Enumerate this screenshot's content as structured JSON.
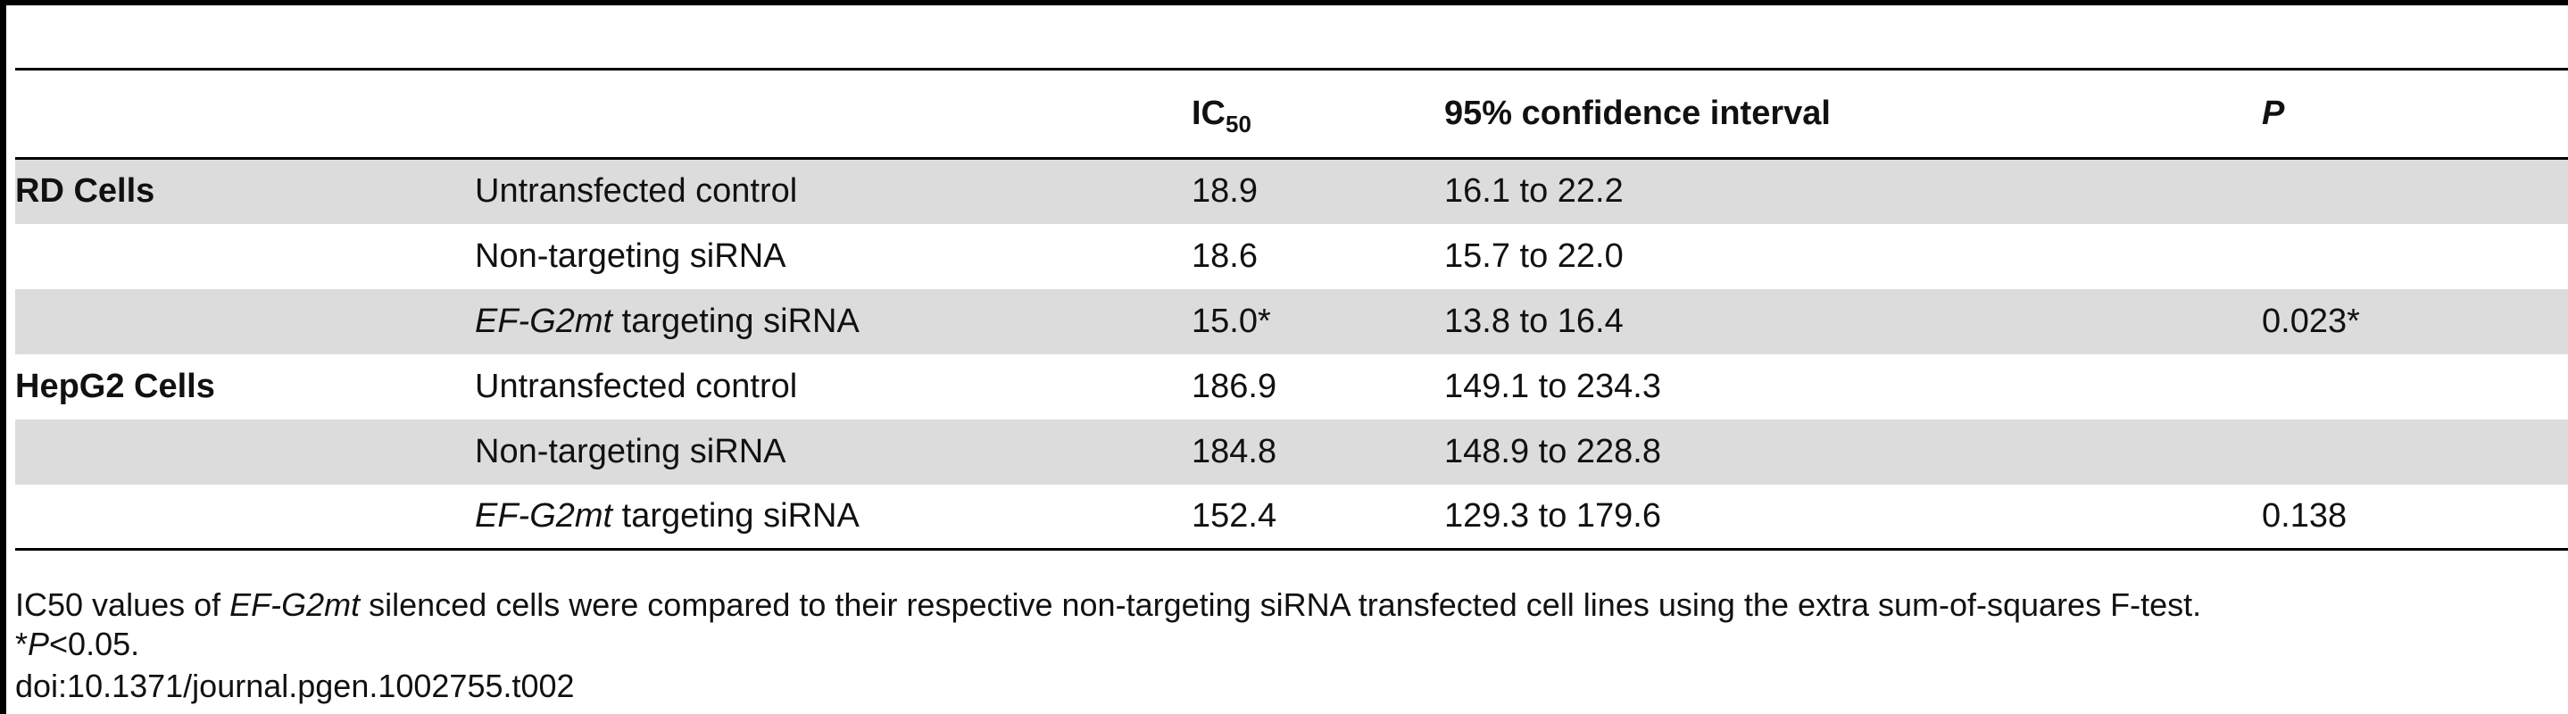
{
  "table": {
    "headers": {
      "col1": "",
      "col2": "",
      "ic50_main": "IC",
      "ic50_sub": "50",
      "ci": "95% confidence interval",
      "p": "P"
    },
    "rows": [
      {
        "group": "RD Cells",
        "condition_italic": "",
        "condition": "Untransfected control",
        "ic50": "18.9",
        "ci": "16.1 to 22.2",
        "p": ""
      },
      {
        "group": "",
        "condition_italic": "",
        "condition": "Non-targeting siRNA",
        "ic50": "18.6",
        "ci": "15.7 to 22.0",
        "p": ""
      },
      {
        "group": "",
        "condition_italic": "EF-G2mt",
        "condition": " targeting siRNA",
        "ic50": "15.0*",
        "ci": "13.8 to 16.4",
        "p": "0.023*"
      },
      {
        "group": "HepG2 Cells",
        "condition_italic": "",
        "condition": "Untransfected control",
        "ic50": "186.9",
        "ci": "149.1 to 234.3",
        "p": ""
      },
      {
        "group": "",
        "condition_italic": "",
        "condition": "Non-targeting siRNA",
        "ic50": "184.8",
        "ci": "148.9 to 228.8",
        "p": ""
      },
      {
        "group": "",
        "condition_italic": "EF-G2mt",
        "condition": " targeting siRNA",
        "ic50": "152.4",
        "ci": "129.3 to 179.6",
        "p": "0.138"
      }
    ]
  },
  "footnotes": {
    "line1_a": "IC50 values of ",
    "line1_italic": "EF-G2mt",
    "line1_b": " silenced cells were compared to their respective non-targeting siRNA transfected cell lines using the extra sum-of-squares F-test.",
    "line2_a": "*",
    "line2_italic": "P",
    "line2_b": "<0.05.",
    "doi": "doi:10.1371/journal.pgen.1002755.t002"
  }
}
